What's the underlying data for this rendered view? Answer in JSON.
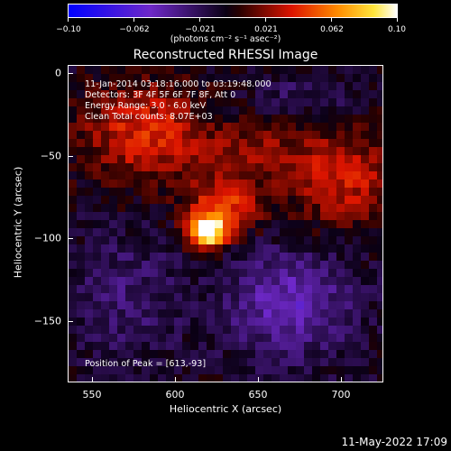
{
  "colorbar": {
    "ticks": [
      "−0.10",
      "−0.062",
      "−0.021",
      "0.021",
      "0.062",
      "0.10"
    ],
    "units": "(photons cm⁻² s⁻¹ asec⁻²)"
  },
  "title": "Reconstructed RHESSI Image",
  "annotations": {
    "time_range": "11-Jan-2014 03:18:16.000 to 03:19:48.000",
    "detectors": "Detectors: 3F 4F 5F 6F 7F 8F, Att 0",
    "energy": "Energy Range: 3.0 - 6.0 keV",
    "method": "Clean     Total counts: 8.07E+03",
    "peak": "Position of Peak = [613,-93]"
  },
  "x_axis": {
    "label": "Heliocentric X (arcsec)",
    "ticks": [
      "550",
      "600",
      "650",
      "700"
    ]
  },
  "y_axis": {
    "label": "Heliocentric Y (arcsec)",
    "ticks": [
      "0",
      "−50",
      "−100",
      "−150"
    ]
  },
  "timestamp": "11-May-2022 17:09"
}
